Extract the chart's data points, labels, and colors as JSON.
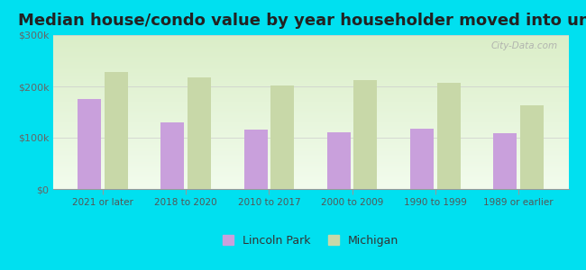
{
  "title": "Median house/condo value by year householder moved into unit",
  "categories": [
    "2021 or later",
    "2018 to 2020",
    "2010 to 2017",
    "2000 to 2009",
    "1990 to 1999",
    "1989 or earlier"
  ],
  "lincoln_park_values": [
    175000,
    130000,
    115000,
    110000,
    118000,
    108000
  ],
  "michigan_values": [
    228000,
    218000,
    202000,
    212000,
    207000,
    163000
  ],
  "lincoln_park_color": "#c9a0dc",
  "michigan_color": "#c8d8a8",
  "background_outer": "#00e0f0",
  "ylim": [
    0,
    300000
  ],
  "yticks": [
    0,
    100000,
    200000,
    300000
  ],
  "ytick_labels": [
    "$0",
    "$100k",
    "$200k",
    "$300k"
  ],
  "bar_width": 0.28,
  "title_fontsize": 13,
  "legend_labels": [
    "Lincoln Park",
    "Michigan"
  ],
  "watermark": "City-Data.com"
}
